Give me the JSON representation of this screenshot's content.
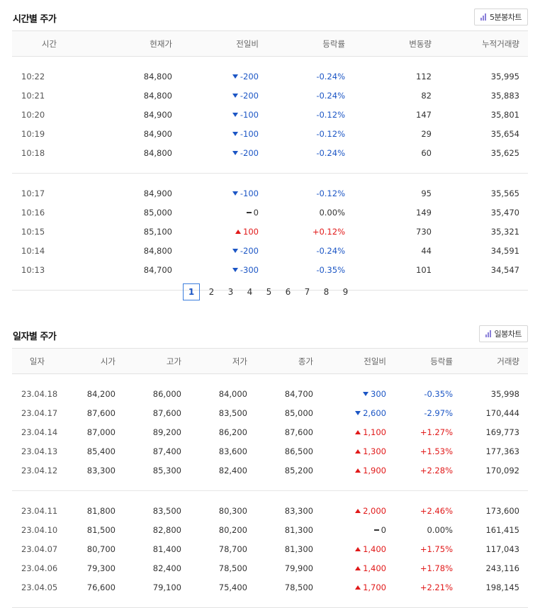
{
  "hourly": {
    "title": "시간별 주가",
    "chart_button": "5분봉차트",
    "columns": [
      "시간",
      "현재가",
      "전일비",
      "등락률",
      "변동량",
      "누적거래량"
    ],
    "groups": [
      [
        {
          "time": "10:22",
          "price": "84,800",
          "dir": "down",
          "change": "-200",
          "rate": "-0.24%",
          "vol": "112",
          "cum": "35,995"
        },
        {
          "time": "10:21",
          "price": "84,800",
          "dir": "down",
          "change": "-200",
          "rate": "-0.24%",
          "vol": "82",
          "cum": "35,883"
        },
        {
          "time": "10:20",
          "price": "84,900",
          "dir": "down",
          "change": "-100",
          "rate": "-0.12%",
          "vol": "147",
          "cum": "35,801"
        },
        {
          "time": "10:19",
          "price": "84,900",
          "dir": "down",
          "change": "-100",
          "rate": "-0.12%",
          "vol": "29",
          "cum": "35,654"
        },
        {
          "time": "10:18",
          "price": "84,800",
          "dir": "down",
          "change": "-200",
          "rate": "-0.24%",
          "vol": "60",
          "cum": "35,625"
        }
      ],
      [
        {
          "time": "10:17",
          "price": "84,900",
          "dir": "down",
          "change": "-100",
          "rate": "-0.12%",
          "vol": "95",
          "cum": "35,565"
        },
        {
          "time": "10:16",
          "price": "85,000",
          "dir": "flat",
          "change": "0",
          "rate": "0.00%",
          "vol": "149",
          "cum": "35,470"
        },
        {
          "time": "10:15",
          "price": "85,100",
          "dir": "up",
          "change": "100",
          "rate": "+0.12%",
          "vol": "730",
          "cum": "35,321"
        },
        {
          "time": "10:14",
          "price": "84,800",
          "dir": "down",
          "change": "-200",
          "rate": "-0.24%",
          "vol": "44",
          "cum": "34,591"
        },
        {
          "time": "10:13",
          "price": "84,700",
          "dir": "down",
          "change": "-300",
          "rate": "-0.35%",
          "vol": "101",
          "cum": "34,547"
        }
      ]
    ]
  },
  "pagination": {
    "pages": [
      "1",
      "2",
      "3",
      "4",
      "5",
      "6",
      "7",
      "8",
      "9"
    ],
    "active": "1"
  },
  "daily": {
    "title": "일자별 주가",
    "chart_button": "일봉차트",
    "columns": [
      "일자",
      "시가",
      "고가",
      "저가",
      "종가",
      "전일비",
      "등락률",
      "거래량"
    ],
    "groups": [
      [
        {
          "date": "23.04.18",
          "open": "84,200",
          "high": "86,000",
          "low": "84,000",
          "close": "84,700",
          "dir": "down",
          "change": "300",
          "rate": "-0.35%",
          "vol": "35,998"
        },
        {
          "date": "23.04.17",
          "open": "87,600",
          "high": "87,600",
          "low": "83,500",
          "close": "85,000",
          "dir": "down",
          "change": "2,600",
          "rate": "-2.97%",
          "vol": "170,444"
        },
        {
          "date": "23.04.14",
          "open": "87,000",
          "high": "89,200",
          "low": "86,200",
          "close": "87,600",
          "dir": "up",
          "change": "1,100",
          "rate": "+1.27%",
          "vol": "169,773"
        },
        {
          "date": "23.04.13",
          "open": "85,400",
          "high": "87,400",
          "low": "83,600",
          "close": "86,500",
          "dir": "up",
          "change": "1,300",
          "rate": "+1.53%",
          "vol": "177,363"
        },
        {
          "date": "23.04.12",
          "open": "83,300",
          "high": "85,300",
          "low": "82,400",
          "close": "85,200",
          "dir": "up",
          "change": "1,900",
          "rate": "+2.28%",
          "vol": "170,092"
        }
      ],
      [
        {
          "date": "23.04.11",
          "open": "81,800",
          "high": "83,500",
          "low": "80,300",
          "close": "83,300",
          "dir": "up",
          "change": "2,000",
          "rate": "+2.46%",
          "vol": "173,600"
        },
        {
          "date": "23.04.10",
          "open": "81,500",
          "high": "82,800",
          "low": "80,200",
          "close": "81,300",
          "dir": "flat",
          "change": "0",
          "rate": "0.00%",
          "vol": "161,415"
        },
        {
          "date": "23.04.07",
          "open": "80,700",
          "high": "81,400",
          "low": "78,700",
          "close": "81,300",
          "dir": "up",
          "change": "1,400",
          "rate": "+1.75%",
          "vol": "117,043"
        },
        {
          "date": "23.04.06",
          "open": "79,300",
          "high": "82,400",
          "low": "78,500",
          "close": "79,900",
          "dir": "up",
          "change": "1,400",
          "rate": "+1.78%",
          "vol": "243,116"
        },
        {
          "date": "23.04.05",
          "open": "76,600",
          "high": "79,100",
          "low": "75,400",
          "close": "78,500",
          "dir": "up",
          "change": "1,700",
          "rate": "+2.21%",
          "vol": "198,145"
        }
      ]
    ]
  },
  "colors": {
    "down": "#1c56c5",
    "up": "#e11919",
    "accent": "#3b7ddd",
    "icon": "#8a7fd9"
  },
  "icons": {
    "chart_button": "bar-chart-icon",
    "down": "triangle-down-icon",
    "up": "triangle-up-icon",
    "flat": "dash-icon"
  }
}
